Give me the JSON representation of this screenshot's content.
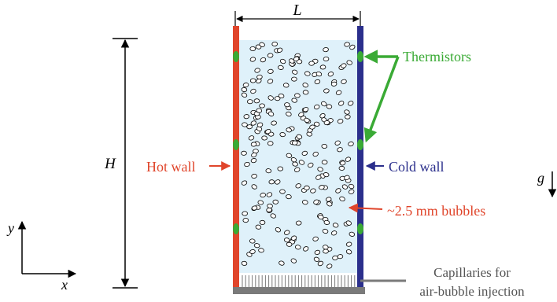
{
  "labels": {
    "width": "L",
    "height": "H",
    "hot_wall": "Hot wall",
    "cold_wall": "Cold wall",
    "thermistors": "Thermistors",
    "bubbles": "~2.5 mm bubbles",
    "capillaries_line1": "Capillaries for",
    "capillaries_line2": "air-bubble injection",
    "gravity": "g",
    "axis_x": "x",
    "axis_y": "y"
  },
  "colors": {
    "hot_wall": "#e0452b",
    "cold_wall": "#2b2f8c",
    "thermistor": "#3aaa35",
    "liquid": "#dff1fa",
    "bubble_label": "#e0452b",
    "capillary_text": "#555555",
    "base": "#7a7a7a"
  }
}
